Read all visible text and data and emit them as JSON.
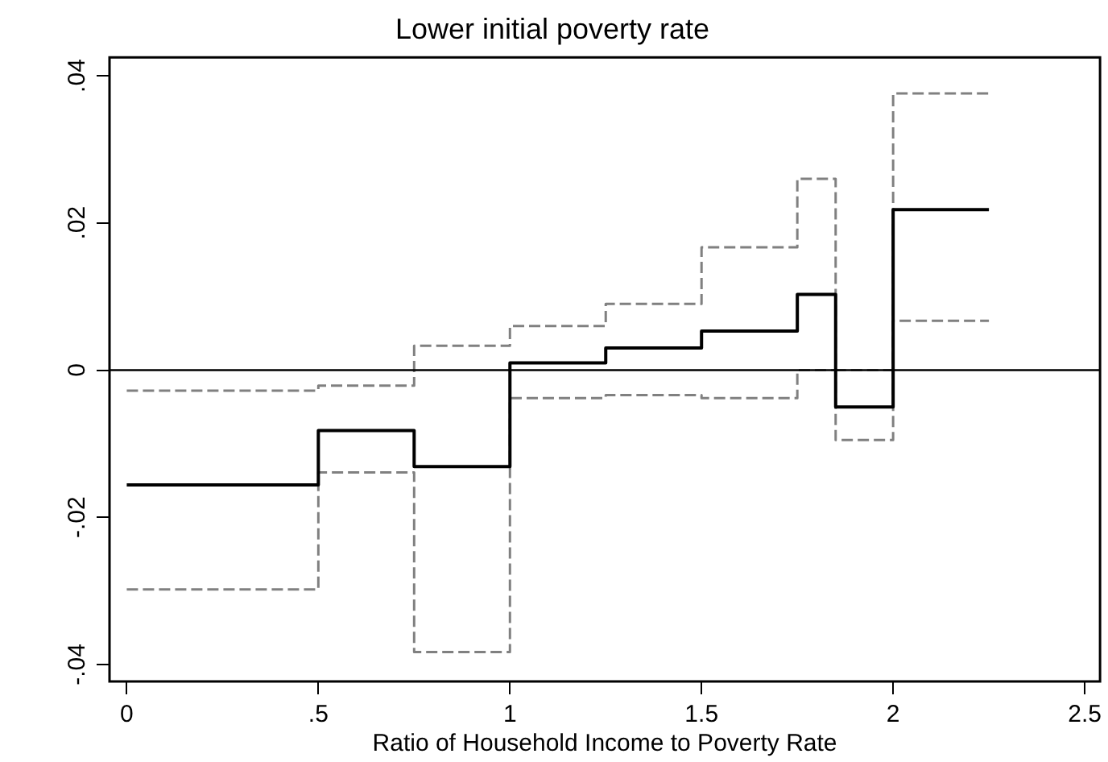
{
  "chart_data": {
    "type": "step",
    "title": "Lower initial poverty rate",
    "xlabel": "Ratio of Household Income to Poverty Rate",
    "x": [
      0,
      0.5,
      0.75,
      1,
      1.25,
      1.5,
      1.75,
      1.85,
      2,
      2.25
    ],
    "series": [
      {
        "color": "#000000",
        "line_style": "solid",
        "values": [
          -0.0156,
          -0.0082,
          -0.0131,
          0.001,
          0.003,
          0.0053,
          0.0103,
          -0.005,
          0.0218,
          0.0218
        ]
      },
      {
        "color": "#808080",
        "line_style": "dashed",
        "values": [
          -0.0298,
          -0.0139,
          -0.0383,
          -0.0038,
          -0.0034,
          -0.0038,
          0,
          -0.0095,
          0.0067,
          0.0067
        ]
      },
      {
        "color": "#808080",
        "line_style": "dashed",
        "values": [
          -0.0028,
          -0.0021,
          0.0033,
          0.006,
          0.009,
          0.0167,
          0.026,
          0,
          0.0376,
          0.0376
        ]
      }
    ],
    "xlim": [
      -0.045,
      2.54
    ],
    "xticks": [
      0,
      {
        "value": 0.5,
        "label": ".5"
      },
      1,
      1.5,
      2,
      2.5
    ],
    "ylim": [
      -0.0423,
      0.0425
    ],
    "yticks": [
      {
        "value": -0.04,
        "label": "-.04"
      },
      {
        "value": -0.02,
        "label": "-.02"
      },
      0,
      {
        "value": 0.02,
        "label": ".02"
      },
      {
        "value": 0.04,
        "label": ".04"
      }
    ],
    "ref_lines": [
      {
        "axis": "y",
        "value": 0,
        "color": "#000000"
      }
    ],
    "grid": false,
    "legend": false,
    "marker": "none"
  }
}
